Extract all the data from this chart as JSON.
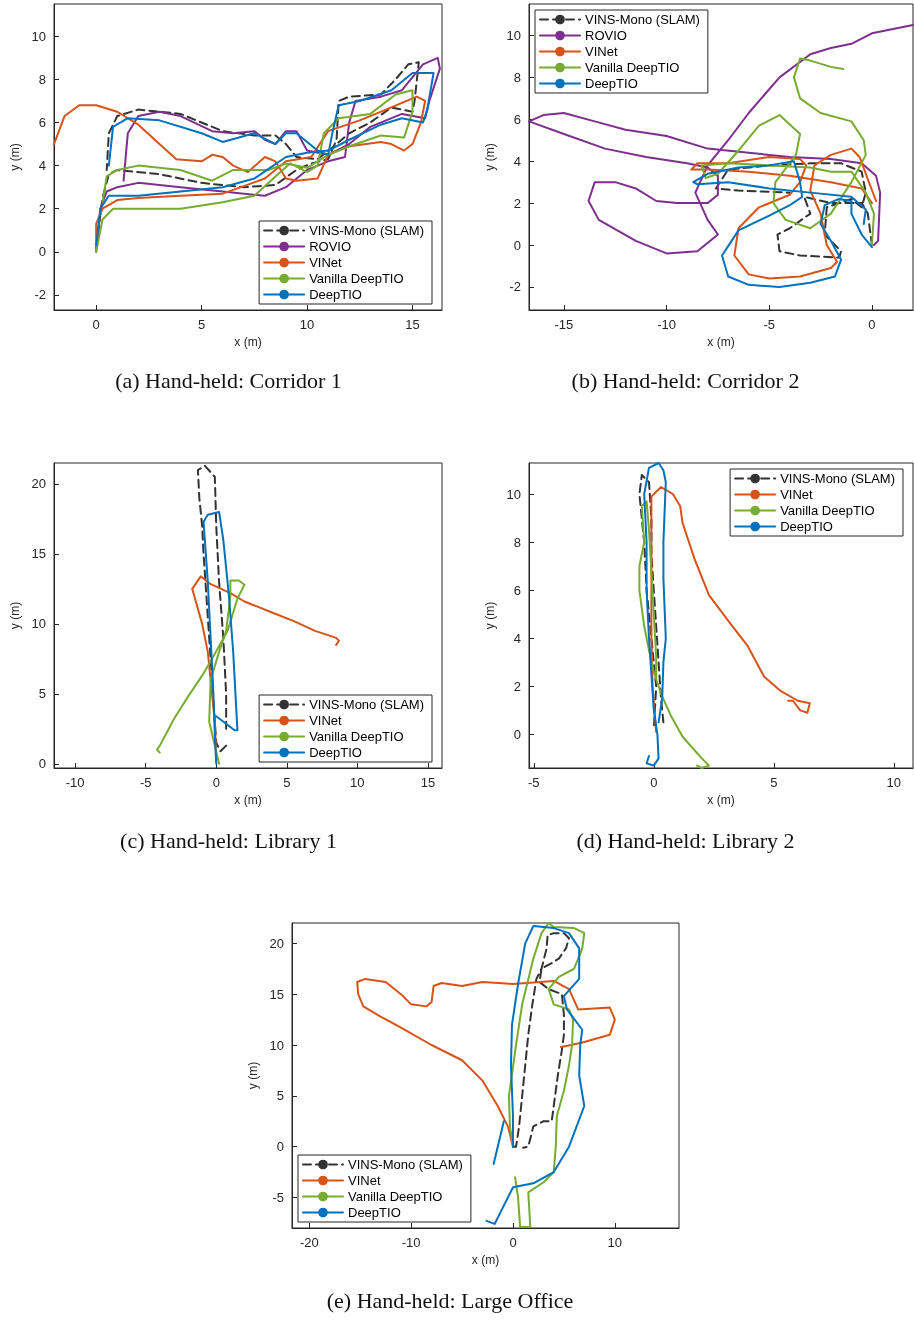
{
  "chart_data": [
    {
      "type": "line",
      "title": "(a) Hand-held: Corridor 1",
      "xlabel": "x (m)",
      "ylabel": "y (m)",
      "xlim": [
        -2,
        16.4
      ],
      "ylim": [
        -2.7,
        11.5
      ],
      "xticks": [
        0,
        5,
        10,
        15
      ],
      "yticks": [
        -2,
        0,
        2,
        4,
        6,
        8,
        10
      ],
      "grid": false,
      "legend": "bottom right",
      "marker": "none",
      "series": [
        {
          "name": "VINS-Mono (SLAM)",
          "color": "#333333",
          "line_style": "dashed",
          "x": [
            0,
            0.3,
            0.6,
            1,
            3,
            5,
            7,
            8.5,
            9.5,
            10.2,
            11,
            11.4,
            11.5,
            12,
            13.5,
            14.2,
            14.8,
            15.3,
            15.1,
            15,
            14,
            13,
            12,
            11.4,
            10.5,
            9.5,
            9,
            8.5,
            7.5,
            6,
            4,
            2,
            1,
            0.6,
            0.5
          ],
          "values": [
            0.2,
            2.5,
            3.6,
            3.8,
            3.6,
            3.2,
            3.0,
            3.1,
            3.8,
            4.1,
            4.3,
            5.2,
            7.0,
            7.2,
            7.3,
            8.0,
            8.7,
            8.8,
            7.0,
            6.5,
            6.7,
            6.0,
            5.5,
            5.0,
            4.3,
            4.4,
            5.0,
            5.4,
            5.4,
            5.6,
            6.4,
            6.6,
            6.3,
            5.5,
            3.8
          ]
        },
        {
          "name": "ROVIO",
          "color": "#7e2f8e",
          "x": [
            0,
            0.2,
            0.5,
            1,
            2,
            4,
            6,
            8,
            9,
            10,
            11,
            11.8,
            12,
            12.3,
            13.5,
            14.5,
            15.5,
            16.2,
            16.3,
            15.8,
            15.6,
            14.5,
            13,
            12,
            11,
            10,
            9.5,
            9,
            8.5,
            8,
            7.5,
            6.5,
            5.5,
            4,
            3,
            2,
            1.5,
            1.3
          ],
          "values": [
            0,
            2,
            2.8,
            3.0,
            3.2,
            3.0,
            2.8,
            2.6,
            3.0,
            3.8,
            4.2,
            4.4,
            6.0,
            7.0,
            7.2,
            7.5,
            8.7,
            9.0,
            8.5,
            7.0,
            6.2,
            6.4,
            5.8,
            5.0,
            4.5,
            4.7,
            5.6,
            5.6,
            5.0,
            5.2,
            5.6,
            5.5,
            5.6,
            6.3,
            6.5,
            6.3,
            5.5,
            3.3
          ]
        },
        {
          "name": "VINet",
          "color": "#d95319",
          "x": [
            -2,
            -1.5,
            -0.8,
            0,
            1,
            2,
            3,
            3.8,
            5,
            5.5,
            6,
            6.5,
            7.2,
            8,
            8.5,
            9,
            9.5,
            10.5,
            11,
            12,
            13.5,
            14,
            14.6,
            15,
            15.4,
            15.6,
            15.2,
            14,
            12.5,
            11,
            10.2,
            9,
            8,
            6,
            4,
            2,
            1,
            0.3,
            0,
            0
          ],
          "values": [
            5.0,
            6.3,
            6.8,
            6.8,
            6.5,
            5.9,
            5.0,
            4.3,
            4.2,
            4.5,
            4.4,
            4.0,
            3.7,
            4.4,
            4.2,
            3.4,
            3.3,
            3.4,
            4.5,
            4.9,
            5.1,
            5.0,
            4.7,
            5.0,
            6.0,
            7.0,
            7.2,
            6.7,
            6.1,
            5.6,
            4.4,
            4.2,
            3.4,
            2.7,
            2.6,
            2.5,
            2.4,
            2.0,
            1.3,
            0.1
          ]
        },
        {
          "name": "Vanilla DeepTIO",
          "color": "#77ac30",
          "x": [
            0,
            0.3,
            0.8,
            2,
            4,
            6,
            7.5,
            8.5,
            9.2,
            10,
            10.5,
            10.8,
            11.5,
            13,
            14.2,
            15,
            15,
            14.6,
            13.5,
            12,
            11,
            10,
            9,
            8.2,
            7.5,
            6.5,
            5.5,
            4,
            2,
            1,
            0.5,
            0.3
          ],
          "values": [
            0,
            1.5,
            2.0,
            2.0,
            2.0,
            2.3,
            2.6,
            3.5,
            4.1,
            3.7,
            4.0,
            5.5,
            6.2,
            6.4,
            7.3,
            7.5,
            6.5,
            5.3,
            5.4,
            4.9,
            4.5,
            3.9,
            4.1,
            3.8,
            3.8,
            3.8,
            3.3,
            3.8,
            4.0,
            3.8,
            3.5,
            2.3
          ]
        },
        {
          "name": "DeepTIO",
          "color": "#0072bd",
          "x": [
            0,
            0.2,
            0.6,
            2,
            4,
            6,
            7.5,
            9,
            10,
            11,
            12,
            13.5,
            14.5,
            15.5,
            15.7,
            16,
            15,
            14,
            12.5,
            11.5,
            11.2,
            11,
            10.5,
            9.5,
            9,
            8.5,
            7.5,
            6,
            5,
            3,
            1.5,
            0.8,
            0.6
          ],
          "values": [
            0.3,
            2,
            2.6,
            2.6,
            2.8,
            3.0,
            3.4,
            4.4,
            4.6,
            4.7,
            5.2,
            5.9,
            6.2,
            6.0,
            6.6,
            8.3,
            8.3,
            7.5,
            7.0,
            6.8,
            5.5,
            4.5,
            4.7,
            5.5,
            5.5,
            5.0,
            5.5,
            5.1,
            5.5,
            6.1,
            6.2,
            5.8,
            4.0
          ]
        }
      ]
    },
    {
      "type": "line",
      "title": "(b) Hand-held: Corridor 2",
      "xlabel": "x (m)",
      "ylabel": "y (m)",
      "xlim": [
        -16.7,
        2
      ],
      "ylim": [
        -3.1,
        11.5
      ],
      "xticks": [
        -15,
        -10,
        -5,
        0
      ],
      "yticks": [
        -2,
        0,
        2,
        4,
        6,
        8,
        10
      ],
      "grid": false,
      "legend": "top left",
      "marker": "none",
      "series": [
        {
          "name": "VINS-Mono (SLAM)",
          "color": "#333333",
          "line_style": "dashed",
          "x": [
            0,
            -0.2,
            -0.5,
            -2,
            -3.3,
            -3,
            -4,
            -4.6,
            -4.5,
            -3.5,
            -1.6,
            -1.5,
            -2.3,
            -2.2,
            -1,
            -0.5,
            -0.3,
            -0.5,
            -1.5,
            -3,
            -5,
            -7,
            -7.6,
            -6.5,
            -4
          ],
          "values": [
            0,
            1.5,
            2.0,
            2.0,
            2.3,
            1.5,
            0.8,
            0.5,
            -0.3,
            -0.5,
            -0.6,
            -0.3,
            0.5,
            1.8,
            2.2,
            1.8,
            2.5,
            3.5,
            3.9,
            3.9,
            3.8,
            3.6,
            2.7,
            2.6,
            2.5
          ]
        },
        {
          "name": "ROVIO",
          "color": "#7e2f8e",
          "x": [
            0.1,
            0.3,
            0.4,
            0.2,
            -0.5,
            -2,
            -4,
            -6,
            -8,
            -10,
            -12,
            -13.5,
            -15,
            -16,
            -16.7,
            -15,
            -13,
            -11,
            -9,
            -8,
            -7.5,
            -7.5,
            -8,
            -9.5,
            -10.5,
            -11.5,
            -12.5,
            -13.5,
            -13.8,
            -13.3,
            -11.5,
            -10,
            -8.5,
            -7.5,
            -8,
            -8.6,
            -8,
            -7,
            -6,
            -4.5,
            -3,
            -2,
            -1,
            0,
            2
          ],
          "values": [
            0,
            0.2,
            2.5,
            3.3,
            3.9,
            4.1,
            4.2,
            4.4,
            4.6,
            5.2,
            5.5,
            5.9,
            6.3,
            6.2,
            5.9,
            5.3,
            4.6,
            4.2,
            3.9,
            3.7,
            3.3,
            2.4,
            2.0,
            2.0,
            2.1,
            2.7,
            3.0,
            3.0,
            2.1,
            1.2,
            0.2,
            -0.4,
            -0.3,
            0.5,
            1.2,
            2.5,
            3.8,
            5.0,
            6.3,
            8.0,
            9.1,
            9.4,
            9.6,
            10.1,
            10.5
          ]
        },
        {
          "name": "VINet",
          "color": "#d95319",
          "x": [
            0.2,
            -0.3,
            -0.6,
            -1,
            -2,
            -2.8,
            -3,
            -2.5,
            -2.2,
            -1.7,
            -2,
            -3.5,
            -5,
            -6,
            -6.7,
            -6.5,
            -5.5,
            -4,
            -3.5,
            -3.2,
            -3.5,
            -5,
            -7,
            -8.5,
            -8.8,
            -8,
            -6,
            -4,
            -2,
            -0.5,
            0
          ],
          "values": [
            2.1,
            3.4,
            4.2,
            4.6,
            4.3,
            3.8,
            2.6,
            1.5,
            0,
            -0.8,
            -1.1,
            -1.5,
            -1.6,
            -1.4,
            -0.5,
            0.8,
            1.8,
            2.4,
            3.0,
            3.8,
            4.1,
            4.2,
            3.9,
            3.9,
            3.6,
            3.6,
            3.5,
            3.3,
            3.0,
            2.7,
            2.0
          ]
        },
        {
          "name": "Vanilla DeepTIO",
          "color": "#77ac30",
          "x": [
            0,
            0.1,
            -0.3,
            -1,
            -2,
            -3,
            -5,
            -7,
            -8.3,
            -8.1,
            -7.5,
            -6.5,
            -5.5,
            -4.5,
            -3.5,
            -3.7,
            -4.7,
            -4.8,
            -4.2,
            -3,
            -2,
            -1,
            -0.3,
            -0.4,
            -1,
            -2.5,
            -3.5,
            -3.8,
            -3.5,
            -3,
            -2,
            -1.4
          ],
          "values": [
            0,
            1.5,
            2.5,
            3.5,
            3.5,
            3.7,
            3.8,
            3.9,
            3.8,
            3.2,
            3.4,
            4.5,
            5.7,
            6.2,
            5.3,
            4.3,
            3.0,
            2.0,
            1.2,
            0.8,
            1.5,
            3.0,
            4.3,
            5.0,
            5.9,
            6.3,
            7.0,
            8.0,
            8.9,
            8.8,
            8.5,
            8.4
          ]
        },
        {
          "name": "DeepTIO",
          "color": "#0072bd",
          "x": [
            0,
            -0.5,
            -1,
            -1,
            -1.6,
            -2.3,
            -2.5,
            -2,
            -1.5,
            -1.8,
            -3,
            -4.5,
            -6,
            -7,
            -7.3,
            -6.5,
            -5,
            -4,
            -3.4,
            -3.5,
            -3.8,
            -5,
            -6.5,
            -8,
            -8.7,
            -8.5,
            -7,
            -5,
            -3,
            -1,
            -0.3,
            -0.4
          ],
          "values": [
            -0.1,
            0.5,
            1.5,
            2.1,
            2.2,
            1.9,
            1.0,
            0.2,
            -0.7,
            -1.5,
            -1.8,
            -2.0,
            -1.9,
            -1.5,
            -0.5,
            0.7,
            1.4,
            1.9,
            2.3,
            3.0,
            4.0,
            3.8,
            3.7,
            3.4,
            3.0,
            2.9,
            3.0,
            2.7,
            2.5,
            2.3,
            1.7,
            1.0
          ]
        }
      ]
    },
    {
      "type": "line",
      "title": "(c) Hand-held: Library 1",
      "xlabel": "x (m)",
      "ylabel": "y (m)",
      "xlim": [
        -11.5,
        16
      ],
      "ylim": [
        -0.3,
        21.5
      ],
      "xticks": [
        -10,
        -5,
        0,
        5,
        10,
        15
      ],
      "yticks": [
        0,
        5,
        10,
        15,
        20
      ],
      "grid": false,
      "legend": "bottom right",
      "marker": "none",
      "series": [
        {
          "name": "VINS-Mono (SLAM)",
          "color": "#333333",
          "line_style": "dashed",
          "x": [
            0.7,
            0.3,
            0,
            -0.1,
            -0.3,
            -0.5,
            -0.7,
            -0.9,
            -1,
            -1.2,
            -1.3,
            -0.8,
            -0.1,
            0,
            0.2,
            0.5,
            0.7,
            0.7
          ],
          "values": [
            1.3,
            0.9,
            1.5,
            3,
            6,
            9,
            12,
            15,
            17,
            19,
            21,
            21.3,
            20.5,
            17,
            13,
            9,
            5,
            2.5
          ]
        },
        {
          "name": "VINet",
          "color": "#d95319",
          "x": [
            0,
            -0.1,
            -0.4,
            -0.6,
            -1,
            -1.7,
            -1.1,
            -0.5,
            1,
            2,
            4,
            5.5,
            7,
            8.5,
            8.7,
            8.5
          ],
          "values": [
            0.2,
            3,
            6,
            8,
            10,
            12.5,
            13.4,
            12.9,
            12.2,
            11.6,
            10.8,
            10.2,
            9.5,
            9.0,
            8.8,
            8.5
          ]
        },
        {
          "name": "Vanilla DeepTIO",
          "color": "#77ac30",
          "x": [
            0.2,
            -0.5,
            -0.4,
            0.2,
            0.7,
            1,
            1,
            1.6,
            2,
            1.5,
            0.8,
            -0.3,
            -1,
            -2,
            -3,
            -4,
            -4.2,
            -4
          ],
          "values": [
            0,
            3,
            6,
            8,
            9.5,
            12,
            13.1,
            13.1,
            12.8,
            11.8,
            9.5,
            7.5,
            6.3,
            4.8,
            3.2,
            1.3,
            1.0,
            0.8
          ]
        },
        {
          "name": "DeepTIO",
          "color": "#0072bd",
          "x": [
            0,
            -0.1,
            -0.2,
            -0.4,
            -0.6,
            -0.9,
            -0.6,
            0.2,
            0.5,
            0.9,
            1.2,
            1.5,
            1.3,
            0
          ],
          "values": [
            0,
            2,
            5,
            9,
            13,
            17.3,
            17.8,
            18.0,
            16,
            12,
            8,
            2.4,
            2.4,
            3.4
          ]
        }
      ]
    },
    {
      "type": "line",
      "title": "(d) Hand-held: Library 2",
      "xlabel": "x (m)",
      "ylabel": "y (m)",
      "xlim": [
        -5.2,
        10.8
      ],
      "ylim": [
        -1.4,
        11.3
      ],
      "xticks": [
        -5,
        0,
        5,
        10
      ],
      "yticks": [
        0,
        2,
        4,
        6,
        8,
        10
      ],
      "grid": false,
      "legend": "top right",
      "marker": "none",
      "series": [
        {
          "name": "VINS-Mono (SLAM)",
          "color": "#333333",
          "line_style": "dashed",
          "x": [
            0.4,
            0.3,
            0.2,
            0.1,
            0,
            -0.1,
            -0.1,
            -0.2,
            -0.5,
            -0.6,
            -0.4,
            -0.3,
            -0.1,
            0.1,
            0
          ],
          "values": [
            0.5,
            1.5,
            3,
            4.5,
            6,
            7.5,
            9,
            10.5,
            10.8,
            10,
            8,
            6,
            4,
            2,
            0.2
          ]
        },
        {
          "name": "VINet",
          "color": "#d95319",
          "x": [
            0.1,
            -0.05,
            -0.1,
            -0.1,
            -0.1,
            -0.1,
            0.3,
            0.8,
            1.1,
            1.2,
            1.7,
            2.3,
            3.2,
            3.9,
            4.6,
            5.3,
            6.0,
            6.5,
            6.4,
            6.1,
            5.8,
            5.6
          ],
          "values": [
            0.1,
            2,
            4,
            6,
            8,
            9.9,
            10.3,
            10.0,
            9.5,
            8.8,
            7.3,
            5.8,
            4.6,
            3.7,
            2.4,
            1.8,
            1.4,
            1.3,
            0.9,
            1.0,
            1.4,
            1.4
          ]
        },
        {
          "name": "Vanilla DeepTIO",
          "color": "#77ac30",
          "x": [
            1.8,
            2.0,
            2.3,
            2.0,
            1.2,
            0.7,
            0.3,
            0,
            -0.2,
            -0.4,
            -0.6,
            -0.6,
            -0.4,
            -0.5,
            -0.3,
            -0.2,
            0,
            0.1,
            0.1
          ],
          "values": [
            -1.3,
            -1.4,
            -1.3,
            -1.0,
            -0.1,
            0.8,
            1.7,
            2.6,
            3.5,
            4.5,
            6,
            7,
            8,
            9.5,
            9.7,
            8.5,
            5,
            3.2,
            2.3
          ]
        },
        {
          "name": "DeepTIO",
          "color": "#0072bd",
          "x": [
            -0.2,
            -0.3,
            0,
            0.2,
            0.15,
            0,
            -0.1,
            -0.2,
            -0.3,
            -0.3,
            -0.4,
            -0.2,
            0.2,
            0.4,
            0.5,
            0.4,
            0.4,
            0.5,
            0.4,
            0.35,
            0.2
          ],
          "values": [
            -0.9,
            -1.2,
            -1.3,
            -1.0,
            0,
            1,
            2.5,
            4,
            6,
            8,
            10,
            11.1,
            11.3,
            11.0,
            10.5,
            8,
            6.5,
            4,
            3,
            1.5,
            0.5
          ]
        }
      ]
    },
    {
      "type": "line",
      "title": "(e) Hand-held: Large Office",
      "xlabel": "x (m)",
      "ylabel": "y (m)",
      "xlim": [
        -21.7,
        16.3
      ],
      "ylim": [
        -8,
        22
      ],
      "xticks": [
        -20,
        -10,
        0,
        10
      ],
      "yticks": [
        -5,
        0,
        5,
        10,
        15,
        20
      ],
      "grid": false,
      "legend": "bottom left",
      "marker": "none",
      "series": [
        {
          "name": "VINS-Mono (SLAM)",
          "color": "#333333",
          "line_style": "dashed",
          "x": [
            0,
            0.3,
            0.6,
            0.9,
            1.2,
            1.5,
            1.9,
            2.3,
            2.8,
            3.3,
            3.4,
            4,
            5,
            5.5,
            5.2,
            4.5,
            3.7,
            2.8,
            2.6,
            3.5,
            4.8,
            5,
            5,
            4.8,
            4.4,
            4,
            3.8,
            3,
            2,
            1.5,
            1
          ],
          "values": [
            0,
            0,
            2,
            5,
            8,
            11,
            14,
            16.5,
            17.5,
            19.5,
            20.8,
            21,
            21,
            20.5,
            19.5,
            18.5,
            18,
            17.5,
            16.2,
            15.5,
            15,
            13,
            11,
            9.5,
            7,
            4,
            2.5,
            2.5,
            2.0,
            0,
            -0.1
          ]
        },
        {
          "name": "VINet",
          "color": "#d95319",
          "x": [
            0,
            -0.5,
            -1.5,
            -3,
            -5,
            -8,
            -11,
            -13,
            -14.7,
            -15.2,
            -15.3,
            -14.5,
            -12.5,
            -11,
            -10,
            -8.5,
            -8,
            -7.8,
            -7,
            -5,
            -3,
            0,
            4,
            5.5,
            6.4,
            8,
            9.5,
            10,
            9.5,
            7,
            5.7,
            4.7
          ],
          "values": [
            0,
            2,
            4,
            6.5,
            8.5,
            10,
            11.7,
            12.8,
            13.8,
            15,
            16.2,
            16.5,
            16.2,
            15,
            14,
            13.8,
            14.2,
            15.8,
            16.1,
            15.8,
            16.2,
            16,
            16.3,
            15.5,
            13.5,
            13.6,
            13.7,
            12.5,
            11,
            10.3,
            10,
            9.8
          ]
        },
        {
          "name": "Vanilla DeepTIO",
          "color": "#77ac30",
          "x": [
            0.2,
            0.5,
            0.7,
            1.7,
            1.5,
            3,
            4,
            4.2,
            4.3,
            5,
            5.5,
            5.8,
            5.9,
            5.5,
            4,
            3.5,
            4.5,
            6,
            6.8,
            7,
            6,
            4,
            3.5,
            2.8,
            2,
            0.9,
            0.3,
            -0.4,
            -0.3,
            0
          ],
          "values": [
            -3,
            -5,
            -7.9,
            -7.9,
            -4.5,
            -3.5,
            -2.5,
            0,
            3,
            5.5,
            8,
            10,
            12.5,
            13.5,
            14,
            15.5,
            16.7,
            17.5,
            19.5,
            21,
            21.5,
            21.6,
            22,
            21,
            18.5,
            14,
            10,
            5,
            2,
            0
          ]
        },
        {
          "name": "DeepTIO",
          "color": "#0072bd",
          "x": [
            -0.9,
            -1.9,
            null,
            -2.6,
            -1.8,
            -1,
            0,
            2,
            4,
            5.5,
            7,
            6.5,
            6.6,
            6.8,
            5.3,
            5,
            6.5,
            6.5,
            5.5,
            4,
            2,
            1.2,
            0.5,
            -0.1,
            -0.2,
            0,
            0
          ],
          "values": [
            2.5,
            -1.7,
            null,
            -7.3,
            -7.6,
            -6,
            -4,
            -3.6,
            -2.5,
            0,
            4,
            7,
            10,
            11.5,
            13.5,
            14.8,
            16.5,
            19.5,
            21,
            21.5,
            21.7,
            20,
            16,
            12,
            8,
            3,
            0
          ]
        }
      ]
    }
  ]
}
